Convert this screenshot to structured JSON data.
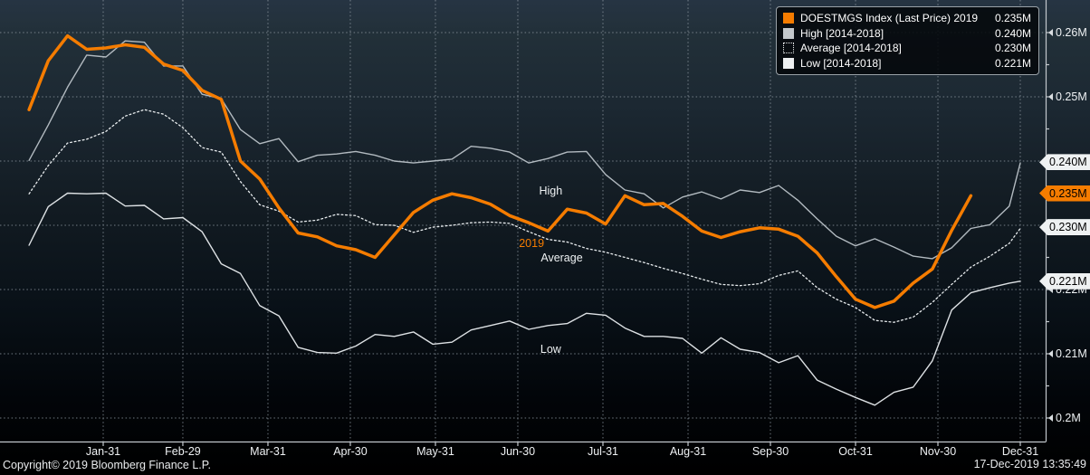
{
  "legend": {
    "rows": [
      {
        "key": "last-price-2019",
        "label": "DOESTMGS Index (Last Price) 2019",
        "value": "0.235M",
        "swatch": "orange-solid"
      },
      {
        "key": "high",
        "label": "High [2014-2018]",
        "value": "0.240M",
        "swatch": "gray-solid"
      },
      {
        "key": "average",
        "label": "Average [2014-2018]",
        "value": "0.230M",
        "swatch": "dotted-outline"
      },
      {
        "key": "low",
        "label": "Low [2014-2018]",
        "value": "0.221M",
        "swatch": "white-solid"
      }
    ]
  },
  "footer": {
    "copyright": "Copyright© 2019 Bloomberg Finance L.P.",
    "timestamp": "17-Dec-2019 13:35:49"
  },
  "chart_data": {
    "type": "line",
    "grid": true,
    "legend_position": "top-right",
    "ylim": [
      0.1963,
      0.2651
    ],
    "x_axis": {
      "tick_labels": [
        "Jan-31",
        "Feb-29",
        "Mar-31",
        "Apr-30",
        "May-31",
        "Jun-30",
        "Jul-31",
        "Aug-31",
        "Sep-30",
        "Oct-31",
        "Nov-30",
        "Dec-31"
      ],
      "tick_days": [
        31,
        60,
        91,
        121,
        152,
        182,
        213,
        244,
        274,
        305,
        335,
        365
      ]
    },
    "y_axis": {
      "unit": "M",
      "tick_labels": [
        "0.26M",
        "0.25M",
        "0.24M",
        "0.23M",
        "0.22M",
        "0.21M",
        "0.2M"
      ],
      "tick_values": [
        0.26,
        0.25,
        0.24,
        0.23,
        0.22,
        0.21,
        0.2
      ],
      "minor_tick_values": [
        0.255,
        0.245,
        0.235,
        0.225,
        0.215,
        0.205
      ]
    },
    "series": [
      {
        "key": "high",
        "name": "High [2014-2018]",
        "color": "#b2bac0",
        "style": "solid",
        "stroke_width": 1.4,
        "days": [
          4,
          11,
          18,
          25,
          32,
          39,
          46,
          53,
          60,
          67,
          74,
          81,
          88,
          95,
          102,
          109,
          116,
          123,
          130,
          137,
          144,
          151,
          158,
          165,
          172,
          179,
          186,
          193,
          200,
          207,
          214,
          221,
          228,
          235,
          242,
          249,
          256,
          263,
          270,
          277,
          284,
          291,
          298,
          305,
          312,
          319,
          326,
          333,
          340,
          347,
          354,
          361,
          365
        ],
        "values": [
          0.2401,
          0.2456,
          0.2515,
          0.2565,
          0.2562,
          0.2587,
          0.2585,
          0.2548,
          0.2548,
          0.2504,
          0.2497,
          0.2449,
          0.2427,
          0.2435,
          0.2399,
          0.2409,
          0.2411,
          0.2415,
          0.2409,
          0.24,
          0.2397,
          0.24,
          0.2403,
          0.2423,
          0.242,
          0.2414,
          0.2397,
          0.2404,
          0.2414,
          0.2415,
          0.2379,
          0.2355,
          0.2349,
          0.2327,
          0.2344,
          0.2352,
          0.2341,
          0.2355,
          0.2351,
          0.2362,
          0.2339,
          0.231,
          0.2283,
          0.2268,
          0.2279,
          0.2266,
          0.2252,
          0.2248,
          0.2265,
          0.2295,
          0.2301,
          0.233,
          0.2397
        ]
      },
      {
        "key": "low",
        "name": "Low [2014-2018]",
        "color": "#dde1e4",
        "style": "solid",
        "stroke_width": 1.4,
        "days": [
          4,
          11,
          18,
          25,
          32,
          39,
          46,
          53,
          60,
          67,
          74,
          81,
          88,
          95,
          102,
          109,
          116,
          123,
          130,
          137,
          144,
          151,
          158,
          165,
          172,
          179,
          186,
          193,
          200,
          207,
          214,
          221,
          228,
          235,
          242,
          249,
          256,
          263,
          270,
          277,
          284,
          291,
          298,
          305,
          312,
          319,
          326,
          333,
          340,
          347,
          354,
          361,
          365
        ],
        "values": [
          0.2269,
          0.2329,
          0.235,
          0.2349,
          0.235,
          0.233,
          0.2331,
          0.231,
          0.2312,
          0.229,
          0.224,
          0.2225,
          0.2175,
          0.2159,
          0.211,
          0.2102,
          0.2101,
          0.2112,
          0.213,
          0.2127,
          0.2134,
          0.2115,
          0.2118,
          0.2137,
          0.2144,
          0.2151,
          0.2138,
          0.2144,
          0.2147,
          0.2163,
          0.216,
          0.214,
          0.2127,
          0.2127,
          0.2124,
          0.2101,
          0.2125,
          0.2107,
          0.2102,
          0.2086,
          0.2097,
          0.2059,
          0.2045,
          0.2032,
          0.202,
          0.204,
          0.2048,
          0.2089,
          0.2168,
          0.2195,
          0.2203,
          0.221,
          0.2213
        ]
      },
      {
        "key": "average",
        "name": "Average [2014-2018]",
        "color": "#e9edef",
        "style": "dotted",
        "stroke_width": 1.3,
        "days": [
          4,
          11,
          18,
          25,
          32,
          39,
          46,
          53,
          60,
          67,
          74,
          81,
          88,
          95,
          102,
          109,
          116,
          123,
          130,
          137,
          144,
          151,
          158,
          165,
          172,
          179,
          186,
          193,
          200,
          207,
          214,
          221,
          228,
          235,
          242,
          249,
          256,
          263,
          270,
          277,
          284,
          291,
          298,
          305,
          312,
          319,
          326,
          333,
          340,
          347,
          354,
          361,
          365
        ],
        "values": [
          0.2349,
          0.2393,
          0.2428,
          0.2434,
          0.2446,
          0.247,
          0.248,
          0.2473,
          0.2452,
          0.2421,
          0.2414,
          0.2368,
          0.2332,
          0.2322,
          0.2305,
          0.2308,
          0.2317,
          0.2315,
          0.2301,
          0.23,
          0.2289,
          0.2297,
          0.23,
          0.2304,
          0.2305,
          0.2303,
          0.229,
          0.2278,
          0.2274,
          0.2264,
          0.2258,
          0.225,
          0.2242,
          0.2233,
          0.2225,
          0.2216,
          0.2208,
          0.2206,
          0.2209,
          0.2222,
          0.2229,
          0.2203,
          0.2185,
          0.2172,
          0.2152,
          0.2149,
          0.2157,
          0.218,
          0.2208,
          0.2235,
          0.2252,
          0.2272,
          0.2295
        ]
      },
      {
        "key": "last-price-2019",
        "name": "DOESTMGS Index (Last Price) 2019",
        "color": "#f57c00",
        "style": "solid",
        "stroke_width": 3.5,
        "days": [
          4,
          11,
          18,
          25,
          32,
          39,
          46,
          53,
          60,
          67,
          74,
          81,
          88,
          95,
          102,
          109,
          116,
          123,
          130,
          137,
          144,
          151,
          158,
          165,
          172,
          179,
          186,
          193,
          200,
          207,
          214,
          221,
          228,
          235,
          242,
          249,
          256,
          263,
          270,
          277,
          284,
          291,
          298,
          305,
          312,
          319,
          326,
          333,
          340,
          347
        ],
        "values": [
          0.248,
          0.2556,
          0.2595,
          0.2574,
          0.2576,
          0.2581,
          0.2577,
          0.2551,
          0.2541,
          0.251,
          0.2496,
          0.24,
          0.2372,
          0.2327,
          0.2288,
          0.2282,
          0.2268,
          0.2262,
          0.225,
          0.2285,
          0.232,
          0.2339,
          0.2349,
          0.2343,
          0.2333,
          0.2315,
          0.2304,
          0.2291,
          0.2325,
          0.2319,
          0.2302,
          0.2346,
          0.2332,
          0.2334,
          0.2314,
          0.2291,
          0.2281,
          0.229,
          0.2296,
          0.2294,
          0.2283,
          0.2257,
          0.222,
          0.2185,
          0.2172,
          0.2182,
          0.221,
          0.2232,
          0.2292,
          0.2346
        ]
      }
    ],
    "annotations": [
      {
        "text": "High",
        "color": "#eef1f3",
        "day": 194,
        "value": 0.2353
      },
      {
        "text": "2019",
        "color": "#f57c00",
        "day": 187,
        "value": 0.2272
      },
      {
        "text": "Average",
        "color": "#eef1f3",
        "day": 198,
        "value": 0.225
      },
      {
        "text": "Low",
        "color": "#eef1f3",
        "day": 194,
        "value": 0.2107
      }
    ],
    "axis_badges": [
      {
        "label": "0.240M",
        "value": 0.2398,
        "bg": "#eef1f2",
        "fg": "#000000"
      },
      {
        "label": "0.235M",
        "value": 0.235,
        "bg": "#f57c00",
        "fg": "#000000"
      },
      {
        "label": "0.230M",
        "value": 0.2297,
        "bg": "#eef1f2",
        "fg": "#000000"
      },
      {
        "label": "0.221M",
        "value": 0.2213,
        "bg": "#eef1f2",
        "fg": "#000000"
      }
    ],
    "colors": {
      "accent_orange": "#f57c00",
      "grid": "#8b959e",
      "axis": "#c2c7cc",
      "text": "#eef1f3"
    }
  }
}
